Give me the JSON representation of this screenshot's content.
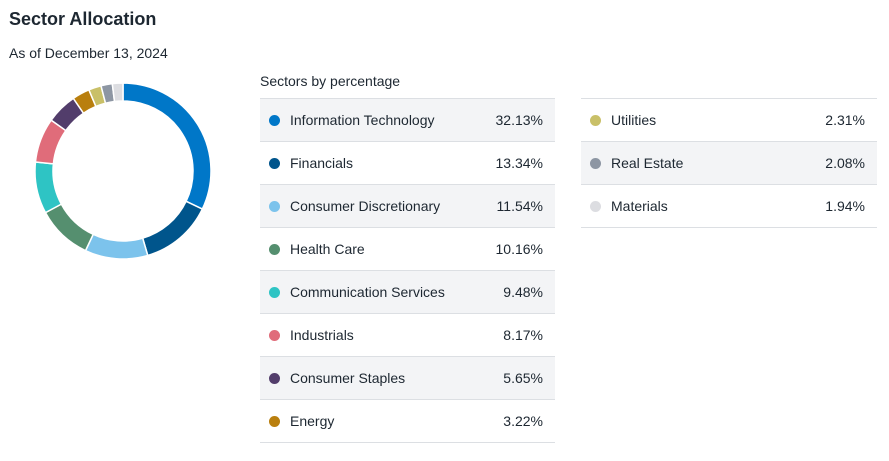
{
  "header": {
    "title": "Sector Allocation",
    "as_of": "As of December 13, 2024"
  },
  "table_caption": "Sectors by percentage",
  "chart_data": {
    "type": "pie",
    "subtype": "donut",
    "title": "Sector Allocation",
    "subtitle": "Sectors by percentage",
    "categories": [
      "Information Technology",
      "Financials",
      "Consumer Discretionary",
      "Health Care",
      "Communication Services",
      "Industrials",
      "Consumer Staples",
      "Energy",
      "Utilities",
      "Real Estate",
      "Materials"
    ],
    "values": [
      32.13,
      13.34,
      11.54,
      10.16,
      9.48,
      8.17,
      5.65,
      3.22,
      2.31,
      2.08,
      1.94
    ],
    "labels": [
      "32.13%",
      "13.34%",
      "11.54%",
      "10.16%",
      "9.48%",
      "8.17%",
      "5.65%",
      "3.22%",
      "2.31%",
      "2.08%",
      "1.94%"
    ],
    "colors": [
      "#0077c8",
      "#00558c",
      "#7cc3ec",
      "#558f6f",
      "#2ec4c4",
      "#e06c7a",
      "#523d6b",
      "#b97f0e",
      "#c9c068",
      "#8d96a3",
      "#dcdde1"
    ],
    "legend": "right"
  }
}
